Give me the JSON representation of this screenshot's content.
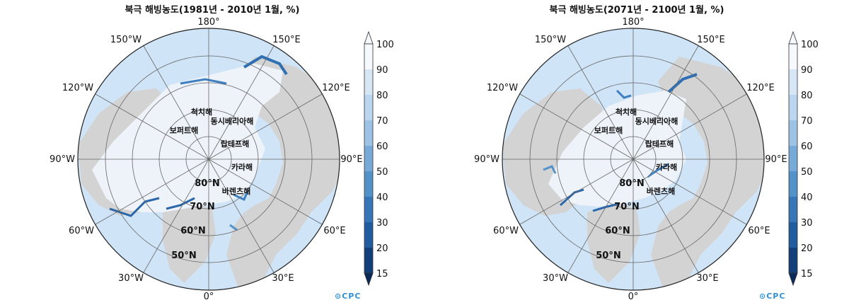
{
  "panels": [
    {
      "id": "left",
      "title": "북극 해빙농도(1981년 - 2010년 1월, %)",
      "logo": "CPC"
    },
    {
      "id": "right",
      "title": "북극 해빙농도(2071년 - 2100년 1월, %)",
      "logo": "CPC"
    }
  ],
  "longitude_labels": [
    "180°",
    "150°E",
    "120°E",
    "90°E",
    "60°E",
    "30°E",
    "0°",
    "30°W",
    "60°W",
    "90°W",
    "120°W",
    "150°W"
  ],
  "latitude_labels": [
    "80°N",
    "70°N",
    "60°N",
    "50°N"
  ],
  "sea_labels": [
    "척치해",
    "동시베리아해",
    "보퍼트해",
    "랍테프해",
    "카라해",
    "바렌츠해"
  ],
  "colorbar": {
    "ticks": [
      "100",
      "90",
      "80",
      "70",
      "60",
      "50",
      "40",
      "30",
      "20",
      "15"
    ],
    "colors": [
      "#f5f8fd",
      "#d7e6f5",
      "#bcd5ee",
      "#9cc2e4",
      "#78aad8",
      "#5392c9",
      "#3676b6",
      "#215c9e",
      "#123f7a",
      "#0a2a5c"
    ]
  },
  "colors": {
    "ocean": "#cfe4f7",
    "land": "#d3d3d3",
    "ice": "#eef3fa",
    "grid": "#666666"
  }
}
